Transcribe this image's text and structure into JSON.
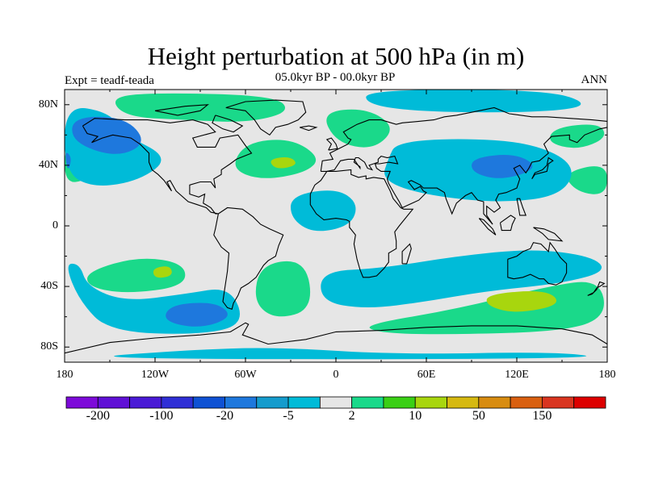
{
  "title": "Height perturbation at 500 hPa (in m)",
  "left_label": "Expt = teadf-teada",
  "center_label": "05.0kyr BP - 00.0kyr BP",
  "right_label": "ANN",
  "y_ticks": [
    {
      "label": "80N",
      "lat": 80
    },
    {
      "label": "40N",
      "lat": 40
    },
    {
      "label": "0",
      "lat": 0
    },
    {
      "label": "40S",
      "lat": -40
    },
    {
      "label": "80S",
      "lat": -80
    }
  ],
  "x_ticks": [
    {
      "label": "180",
      "lon": -180
    },
    {
      "label": "120W",
      "lon": -120
    },
    {
      "label": "60W",
      "lon": -60
    },
    {
      "label": "0",
      "lon": 0
    },
    {
      "label": "60E",
      "lon": 60
    },
    {
      "label": "120E",
      "lon": 120
    },
    {
      "label": "180",
      "lon": 180
    }
  ],
  "colorbar": {
    "colors": [
      "#7d0ad9",
      "#6010d6",
      "#4a1ad6",
      "#2f2fd6",
      "#0f52d4",
      "#1e78dd",
      "#159ccd",
      "#00bbd8",
      "#e6e6e6",
      "#1ad98a",
      "#3ad015",
      "#a8d60e",
      "#d6b910",
      "#d88c10",
      "#d96010",
      "#d93520",
      "#dd0000"
    ],
    "labels": [
      {
        "text": "-200",
        "index": 1
      },
      {
        "text": "-100",
        "index": 3
      },
      {
        "text": "-20",
        "index": 5
      },
      {
        "text": "-5",
        "index": 7
      },
      {
        "text": "2",
        "index": 9
      },
      {
        "text": "10",
        "index": 11
      },
      {
        "text": "50",
        "index": 13
      },
      {
        "text": "150",
        "index": 15
      }
    ]
  },
  "field_regions": [
    {
      "level": "green",
      "points": [
        [
          -150,
          85
        ],
        [
          -120,
          88
        ],
        [
          -40,
          86
        ],
        [
          -30,
          75
        ],
        [
          -60,
          68
        ],
        [
          -100,
          70
        ],
        [
          -140,
          72
        ]
      ]
    },
    {
      "level": "green",
      "points": [
        [
          -180,
          55
        ],
        [
          -160,
          58
        ],
        [
          -150,
          45
        ],
        [
          -165,
          30
        ],
        [
          -180,
          28
        ]
      ]
    },
    {
      "level": "green",
      "points": [
        [
          -60,
          55
        ],
        [
          -30,
          58
        ],
        [
          -10,
          45
        ],
        [
          -20,
          35
        ],
        [
          -50,
          30
        ],
        [
          -70,
          38
        ]
      ]
    },
    {
      "level": "lime",
      "points": [
        [
          -45,
          44
        ],
        [
          -30,
          46
        ],
        [
          -25,
          40
        ],
        [
          -40,
          37
        ]
      ]
    },
    {
      "level": "green",
      "points": [
        [
          -10,
          75
        ],
        [
          20,
          78
        ],
        [
          40,
          65
        ],
        [
          25,
          50
        ],
        [
          0,
          55
        ]
      ]
    },
    {
      "level": "green",
      "points": [
        [
          145,
          65
        ],
        [
          175,
          68
        ],
        [
          180,
          58
        ],
        [
          160,
          50
        ],
        [
          140,
          55
        ]
      ]
    },
    {
      "level": "green",
      "points": [
        [
          150,
          35
        ],
        [
          180,
          42
        ],
        [
          180,
          20
        ],
        [
          160,
          22
        ]
      ]
    },
    {
      "level": "green",
      "points": [
        [
          -165,
          -30
        ],
        [
          -130,
          -20
        ],
        [
          -100,
          -25
        ],
        [
          -100,
          -40
        ],
        [
          -140,
          -45
        ],
        [
          -165,
          -40
        ]
      ]
    },
    {
      "level": "lime",
      "points": [
        [
          -122,
          -28
        ],
        [
          -110,
          -26
        ],
        [
          -108,
          -33
        ],
        [
          -120,
          -35
        ]
      ]
    },
    {
      "level": "green",
      "points": [
        [
          -50,
          -25
        ],
        [
          -20,
          -22
        ],
        [
          -15,
          -55
        ],
        [
          -40,
          -62
        ],
        [
          -55,
          -50
        ]
      ]
    },
    {
      "level": "green",
      "points": [
        [
          20,
          -65
        ],
        [
          80,
          -55
        ],
        [
          140,
          -40
        ],
        [
          175,
          -35
        ],
        [
          180,
          -60
        ],
        [
          150,
          -70
        ],
        [
          60,
          -72
        ],
        [
          25,
          -70
        ]
      ]
    },
    {
      "level": "lime",
      "points": [
        [
          100,
          -45
        ],
        [
          140,
          -42
        ],
        [
          150,
          -52
        ],
        [
          120,
          -58
        ],
        [
          100,
          -53
        ]
      ]
    },
    {
      "level": "cyan",
      "points": [
        [
          -180,
          80
        ],
        [
          -150,
          75
        ],
        [
          -140,
          60
        ],
        [
          -110,
          45
        ],
        [
          -130,
          30
        ],
        [
          -160,
          25
        ],
        [
          -180,
          35
        ]
      ]
    },
    {
      "level": "cyan",
      "points": [
        [
          20,
          90
        ],
        [
          140,
          90
        ],
        [
          170,
          80
        ],
        [
          140,
          75
        ],
        [
          60,
          75
        ],
        [
          20,
          80
        ]
      ]
    },
    {
      "level": "cyan",
      "points": [
        [
          40,
          55
        ],
        [
          80,
          58
        ],
        [
          130,
          55
        ],
        [
          160,
          40
        ],
        [
          150,
          20
        ],
        [
          110,
          15
        ],
        [
          60,
          20
        ],
        [
          30,
          30
        ],
        [
          35,
          45
        ]
      ]
    },
    {
      "level": "cyan",
      "points": [
        [
          -30,
          20
        ],
        [
          0,
          25
        ],
        [
          15,
          15
        ],
        [
          10,
          0
        ],
        [
          -15,
          -5
        ],
        [
          -30,
          5
        ]
      ]
    },
    {
      "level": "cyan",
      "points": [
        [
          -180,
          -25
        ],
        [
          -170,
          -50
        ],
        [
          -150,
          -70
        ],
        [
          -90,
          -72
        ],
        [
          -60,
          -65
        ],
        [
          -70,
          -40
        ],
        [
          -100,
          -45
        ],
        [
          -140,
          -50
        ],
        [
          -165,
          -40
        ],
        [
          -170,
          -25
        ]
      ]
    },
    {
      "level": "cyan",
      "points": [
        [
          -10,
          -30
        ],
        [
          30,
          -28
        ],
        [
          80,
          -20
        ],
        [
          130,
          -15
        ],
        [
          170,
          -20
        ],
        [
          180,
          -30
        ],
        [
          150,
          -38
        ],
        [
          100,
          -43
        ],
        [
          60,
          -50
        ],
        [
          20,
          -55
        ],
        [
          -10,
          -50
        ]
      ]
    },
    {
      "level": "cyan",
      "points": [
        [
          -100,
          -82
        ],
        [
          -40,
          -80
        ],
        [
          40,
          -85
        ],
        [
          150,
          -83
        ],
        [
          180,
          -88
        ],
        [
          -180,
          -88
        ]
      ]
    },
    {
      "level": "blue",
      "points": [
        [
          -175,
          72
        ],
        [
          -140,
          72
        ],
        [
          -125,
          55
        ],
        [
          -145,
          45
        ],
        [
          -175,
          55
        ]
      ]
    },
    {
      "level": "blue",
      "points": [
        [
          -110,
          -52
        ],
        [
          -80,
          -50
        ],
        [
          -68,
          -60
        ],
        [
          -90,
          -68
        ],
        [
          -115,
          -63
        ]
      ]
    },
    {
      "level": "blue",
      "points": [
        [
          90,
          45
        ],
        [
          120,
          48
        ],
        [
          135,
          38
        ],
        [
          110,
          30
        ],
        [
          90,
          35
        ]
      ]
    },
    {
      "level": "blue",
      "points": [
        [
          -180,
          50
        ],
        [
          -175,
          45
        ],
        [
          -178,
          35
        ]
      ]
    }
  ],
  "map_colors": {
    "background": "#e6e6e6",
    "blue": "#1e78dd",
    "cyan": "#00bbd8",
    "green": "#1ad98a",
    "lime": "#a8d60e"
  }
}
